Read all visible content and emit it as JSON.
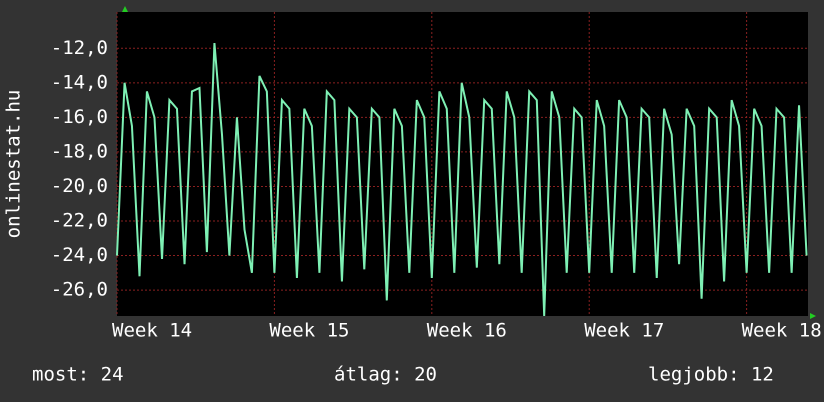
{
  "chart_data": {
    "type": "line",
    "y_label": "onlinestat.hu",
    "x": [
      14,
      14.048,
      14.095,
      14.143,
      14.19,
      14.238,
      14.286,
      14.333,
      14.381,
      14.429,
      14.476,
      14.524,
      14.571,
      14.619,
      14.667,
      14.714,
      14.762,
      14.81,
      14.857,
      14.905,
      14.952,
      15,
      15.048,
      15.095,
      15.143,
      15.19,
      15.238,
      15.286,
      15.333,
      15.381,
      15.429,
      15.476,
      15.524,
      15.571,
      15.619,
      15.667,
      15.714,
      15.762,
      15.81,
      15.857,
      15.905,
      15.952,
      16,
      16.048,
      16.095,
      16.143,
      16.19,
      16.238,
      16.286,
      16.333,
      16.381,
      16.429,
      16.476,
      16.524,
      16.571,
      16.619,
      16.667,
      16.714,
      16.762,
      16.81,
      16.857,
      16.905,
      16.952,
      17,
      17.048,
      17.095,
      17.143,
      17.19,
      17.238,
      17.286,
      17.333,
      17.381,
      17.429,
      17.476,
      17.524,
      17.571,
      17.619,
      17.667,
      17.714,
      17.762,
      17.81,
      17.857,
      17.905,
      17.952,
      18,
      18.048,
      18.095,
      18.143,
      18.19,
      18.238,
      18.286,
      18.333,
      18.381
    ],
    "series": [
      {
        "color": "#7ef0b4",
        "values": [
          -24.0,
          -14.0,
          -16.5,
          -25.2,
          -14.5,
          -16.0,
          -24.2,
          -15.0,
          -15.5,
          -24.5,
          -14.5,
          -14.3,
          -23.8,
          -11.7,
          -17.0,
          -24.0,
          -16.0,
          -22.5,
          -25.0,
          -13.6,
          -14.5,
          -25.0,
          -15.0,
          -15.5,
          -25.3,
          -15.5,
          -16.5,
          -25.0,
          -14.5,
          -15.0,
          -25.5,
          -15.5,
          -16.0,
          -24.8,
          -15.5,
          -16.0,
          -26.6,
          -15.5,
          -16.5,
          -25.0,
          -15.0,
          -16.0,
          -25.3,
          -14.5,
          -15.5,
          -25.0,
          -14.0,
          -16.0,
          -24.7,
          -15.0,
          -15.5,
          -24.5,
          -14.5,
          -16.0,
          -25.0,
          -14.5,
          -15.0,
          -27.5,
          -14.5,
          -16.0,
          -25.0,
          -15.5,
          -16.0,
          -25.0,
          -15.0,
          -16.5,
          -25.0,
          -15.0,
          -16.0,
          -25.0,
          -15.5,
          -16.0,
          -25.3,
          -15.5,
          -17.0,
          -24.5,
          -15.5,
          -16.5,
          -26.5,
          -15.5,
          -16.0,
          -25.5,
          -15.0,
          -16.5,
          -25.0,
          -15.5,
          -16.5,
          -25.0,
          -15.5,
          -16.0,
          -25.0,
          -15.3,
          -24.0
        ]
      }
    ],
    "xlim": [
      14,
      18.39
    ],
    "xticks": [
      {
        "value": 14,
        "label": "Week 14"
      },
      {
        "value": 15,
        "label": "Week 15"
      },
      {
        "value": 16,
        "label": "Week 16"
      },
      {
        "value": 17,
        "label": "Week 17"
      },
      {
        "value": 18,
        "label": "Week 18"
      }
    ],
    "ylim": [
      -27.5,
      -9.9
    ],
    "yticks": [
      {
        "value": -26,
        "label": "-26,0"
      },
      {
        "value": -24,
        "label": "-24,0"
      },
      {
        "value": -22,
        "label": "-22,0"
      },
      {
        "value": -20,
        "label": "-20,0"
      },
      {
        "value": -18,
        "label": "-18,0"
      },
      {
        "value": -16,
        "label": "-16,0"
      },
      {
        "value": -14,
        "label": "-14,0"
      },
      {
        "value": -12,
        "label": "-12,0"
      }
    ],
    "grid": true,
    "footer": [
      "most: 24",
      "átlag: 20",
      "legjobb: 12"
    ]
  }
}
